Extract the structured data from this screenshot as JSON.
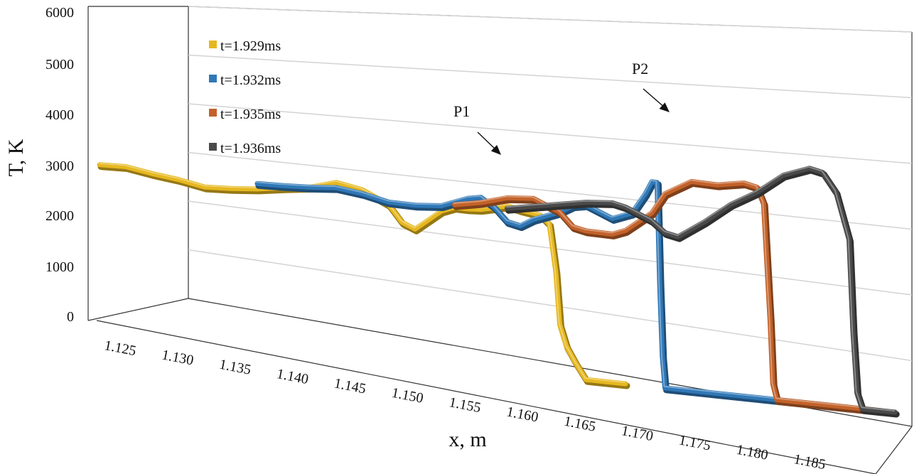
{
  "chart_data": {
    "type": "line",
    "title": "",
    "xlabel": "x, m",
    "ylabel": "T, K",
    "xlim": [
      1.125,
      1.185
    ],
    "ylim": [
      0,
      6000
    ],
    "x_ticks": [
      "1.125",
      "1.130",
      "1.135",
      "1.140",
      "1.145",
      "1.150",
      "1.155",
      "1.160",
      "1.165",
      "1.170",
      "1.175",
      "1.180",
      "1.185"
    ],
    "y_ticks": [
      "0",
      "1000",
      "2000",
      "3000",
      "4000",
      "5000",
      "6000"
    ],
    "grid": true,
    "legend_position": "top-left",
    "annotations": [
      {
        "label": "P1",
        "x": 1.16,
        "y": 3100
      },
      {
        "label": "P2",
        "x": 1.1715,
        "y": 3900
      }
    ],
    "series": [
      {
        "name": "t=1.929ms",
        "color": "#e6b820",
        "points": [
          [
            1.125,
            3000
          ],
          [
            1.127,
            3020
          ],
          [
            1.129,
            2950
          ],
          [
            1.131,
            2900
          ],
          [
            1.133,
            2820
          ],
          [
            1.135,
            2850
          ],
          [
            1.137,
            2900
          ],
          [
            1.139,
            2980
          ],
          [
            1.141,
            3050
          ],
          [
            1.143,
            3200
          ],
          [
            1.145,
            3120
          ],
          [
            1.147,
            2900
          ],
          [
            1.148,
            2600
          ],
          [
            1.149,
            2500
          ],
          [
            1.15,
            2700
          ],
          [
            1.151,
            2900
          ],
          [
            1.152,
            3000
          ],
          [
            1.153,
            3000
          ],
          [
            1.154,
            3020
          ],
          [
            1.155,
            3080
          ],
          [
            1.156,
            3150
          ],
          [
            1.157,
            3100
          ],
          [
            1.1585,
            3050
          ],
          [
            1.1592,
            2900
          ],
          [
            1.1597,
            2000
          ],
          [
            1.16,
            1000
          ],
          [
            1.1605,
            600
          ],
          [
            1.1612,
            300
          ],
          [
            1.162,
            0
          ],
          [
            1.165,
            0
          ]
        ]
      },
      {
        "name": "t=1.932ms",
        "color": "#2f78b7",
        "points": [
          [
            1.137,
            3000
          ],
          [
            1.139,
            3020
          ],
          [
            1.141,
            3050
          ],
          [
            1.143,
            3100
          ],
          [
            1.145,
            3050
          ],
          [
            1.147,
            2950
          ],
          [
            1.149,
            2950
          ],
          [
            1.151,
            3000
          ],
          [
            1.152,
            3100
          ],
          [
            1.153,
            3200
          ],
          [
            1.154,
            3250
          ],
          [
            1.155,
            3100
          ],
          [
            1.156,
            2850
          ],
          [
            1.157,
            2800
          ],
          [
            1.158,
            2950
          ],
          [
            1.159,
            3050
          ],
          [
            1.16,
            3150
          ],
          [
            1.161,
            3300
          ],
          [
            1.162,
            3350
          ],
          [
            1.163,
            3250
          ],
          [
            1.164,
            3150
          ],
          [
            1.1655,
            3300
          ],
          [
            1.1665,
            3700
          ],
          [
            1.167,
            3950
          ],
          [
            1.1674,
            3950
          ],
          [
            1.1676,
            2000
          ],
          [
            1.1678,
            600
          ],
          [
            1.168,
            0
          ],
          [
            1.182,
            0
          ]
        ]
      },
      {
        "name": "t=1.935ms",
        "color": "#c3622a",
        "points": [
          [
            1.152,
            3050
          ],
          [
            1.154,
            3150
          ],
          [
            1.156,
            3300
          ],
          [
            1.158,
            3350
          ],
          [
            1.16,
            3150
          ],
          [
            1.161,
            2900
          ],
          [
            1.162,
            2850
          ],
          [
            1.164,
            2850
          ],
          [
            1.165,
            2950
          ],
          [
            1.166,
            3150
          ],
          [
            1.167,
            3350
          ],
          [
            1.168,
            3750
          ],
          [
            1.17,
            4050
          ],
          [
            1.172,
            4050
          ],
          [
            1.174,
            4150
          ],
          [
            1.175,
            4100
          ],
          [
            1.1755,
            3800
          ],
          [
            1.176,
            1500
          ],
          [
            1.1762,
            300
          ],
          [
            1.1765,
            0
          ],
          [
            1.1845,
            0
          ]
        ]
      },
      {
        "name": "t=1.936ms",
        "color": "#4a4a4a",
        "points": [
          [
            1.156,
            3100
          ],
          [
            1.158,
            3200
          ],
          [
            1.16,
            3300
          ],
          [
            1.162,
            3400
          ],
          [
            1.164,
            3450
          ],
          [
            1.165,
            3400
          ],
          [
            1.166,
            3300
          ],
          [
            1.167,
            3200
          ],
          [
            1.168,
            3000
          ],
          [
            1.169,
            2950
          ],
          [
            1.171,
            3300
          ],
          [
            1.173,
            3700
          ],
          [
            1.175,
            4000
          ],
          [
            1.177,
            4400
          ],
          [
            1.179,
            4600
          ],
          [
            1.18,
            4550
          ],
          [
            1.181,
            4200
          ],
          [
            1.182,
            3300
          ],
          [
            1.1823,
            1500
          ],
          [
            1.1826,
            300
          ],
          [
            1.183,
            0
          ],
          [
            1.1855,
            0
          ]
        ]
      }
    ]
  }
}
